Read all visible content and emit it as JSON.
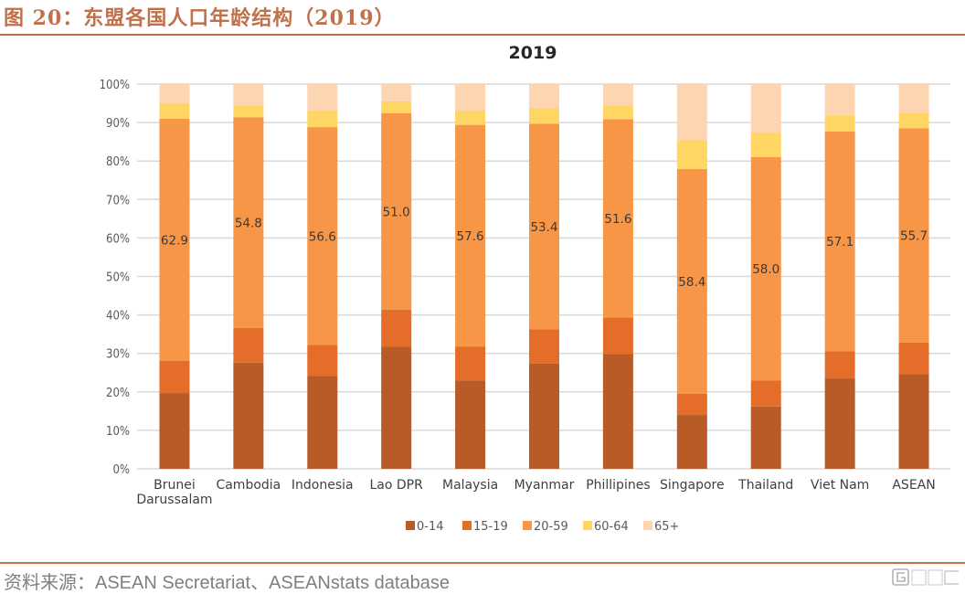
{
  "figure": {
    "title": "图 20：东盟各国人口年龄结构（2019）",
    "source": "资料来源：ASEAN Secretariat、ASEANstats database",
    "watermark": "格隆汇"
  },
  "chart_data": {
    "type": "bar",
    "stacked": true,
    "title": "2019",
    "xlabel": "",
    "ylabel": "",
    "ylim": [
      0,
      100
    ],
    "yticks": [
      "0%",
      "10%",
      "20%",
      "30%",
      "40%",
      "50%",
      "60%",
      "70%",
      "80%",
      "90%",
      "100%"
    ],
    "grid": true,
    "legend_position": "bottom",
    "categories": [
      "Brunei Darussalam",
      "Cambodia",
      "Indonesia",
      "Lao DPR",
      "Malaysia",
      "Myanmar",
      "Phillipines",
      "Singapore",
      "Thailand",
      "Viet Nam",
      "ASEAN"
    ],
    "category_lines": [
      [
        "Brunei",
        "Darussalam"
      ],
      [
        "Cambodia"
      ],
      [
        "Indonesia"
      ],
      [
        "Lao DPR"
      ],
      [
        "Malaysia"
      ],
      [
        "Myanmar"
      ],
      [
        "Phillipines"
      ],
      [
        "Singapore"
      ],
      [
        "Thailand"
      ],
      [
        "Viet Nam"
      ],
      [
        "ASEAN"
      ]
    ],
    "series": [
      {
        "name": "0-14",
        "color": "#b85b27",
        "values": [
          19.7,
          27.6,
          24.1,
          31.8,
          23.0,
          27.4,
          29.8,
          14.0,
          16.2,
          23.5,
          24.6
        ]
      },
      {
        "name": "15-19",
        "color": "#e56d2a",
        "values": [
          8.4,
          9.0,
          8.1,
          9.6,
          8.8,
          8.9,
          9.5,
          5.5,
          6.8,
          7.1,
          8.2
        ]
      },
      {
        "name": "20-59",
        "color": "#f79646",
        "values": [
          62.9,
          54.8,
          56.6,
          51.0,
          57.6,
          53.4,
          51.6,
          58.4,
          58.0,
          57.1,
          55.7
        ]
      },
      {
        "name": "60-64",
        "color": "#ffd564",
        "values": [
          4.0,
          3.1,
          4.4,
          3.1,
          3.7,
          4.0,
          3.6,
          7.5,
          6.3,
          4.2,
          4.1
        ]
      },
      {
        "name": "65+",
        "color": "#fdd5b1",
        "values": [
          5.0,
          5.5,
          6.8,
          4.5,
          6.9,
          6.3,
          5.5,
          14.6,
          12.7,
          8.1,
          7.4
        ]
      }
    ],
    "data_labels": {
      "series": "20-59",
      "text": [
        "62.9",
        "54.8",
        "56.6",
        "51.0",
        "57.6",
        "53.4",
        "51.6",
        "58.4",
        "58.0",
        "57.1",
        "55.7"
      ]
    }
  }
}
